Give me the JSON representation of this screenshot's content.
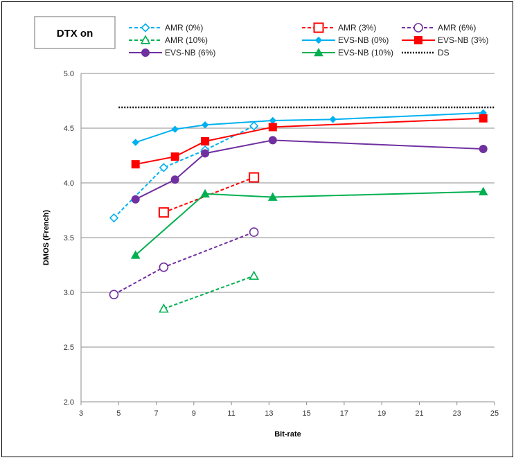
{
  "chart_data": {
    "type": "line",
    "annotation": "DTX on",
    "xlabel": "Bit-rate",
    "ylabel": "DMOS (French)",
    "xlim": [
      3,
      25
    ],
    "ylim": [
      2.0,
      5.0
    ],
    "x_ticks": [
      "3",
      "5",
      "7",
      "9",
      "11",
      "13",
      "15",
      "17",
      "19",
      "21",
      "23",
      "25"
    ],
    "y_ticks": [
      "2.0",
      "2.5",
      "3.0",
      "3.5",
      "4.0",
      "4.5",
      "5.0"
    ],
    "grid": "horizontal",
    "legend_position": "top",
    "series": [
      {
        "name": "AMR (0%)",
        "x": [
          4.75,
          7.4,
          9.6,
          12.2
        ],
        "y": [
          3.68,
          4.14,
          4.3,
          4.52
        ],
        "color": "#00b0f0",
        "dash": "dashed",
        "marker": "diamond-open"
      },
      {
        "name": "AMR (3%)",
        "x": [
          7.4,
          12.2
        ],
        "y": [
          3.73,
          4.05
        ],
        "color": "#ff0000",
        "dash": "dashed",
        "marker": "square-open"
      },
      {
        "name": "AMR (6%)",
        "x": [
          4.75,
          7.4,
          12.2
        ],
        "y": [
          2.98,
          3.23,
          3.55
        ],
        "color": "#7030a0",
        "dash": "dashed",
        "marker": "circle-open"
      },
      {
        "name": "AMR (10%)",
        "x": [
          7.4,
          12.2
        ],
        "y": [
          2.85,
          3.15
        ],
        "color": "#00b050",
        "dash": "dashed",
        "marker": "triangle-open"
      },
      {
        "name": "EVS-NB (0%)",
        "x": [
          5.9,
          8.0,
          9.6,
          13.2,
          16.4,
          24.4
        ],
        "y": [
          4.37,
          4.49,
          4.53,
          4.57,
          4.58,
          4.64
        ],
        "color": "#00b0f0",
        "dash": "solid",
        "marker": "diamond"
      },
      {
        "name": "EVS-NB (3%)",
        "x": [
          5.9,
          8.0,
          9.6,
          13.2,
          24.4
        ],
        "y": [
          4.17,
          4.24,
          4.38,
          4.51,
          4.59
        ],
        "color": "#ff0000",
        "dash": "solid",
        "marker": "square"
      },
      {
        "name": "EVS-NB (6%)",
        "x": [
          5.9,
          8.0,
          9.6,
          13.2,
          24.4
        ],
        "y": [
          3.85,
          4.03,
          4.27,
          4.39,
          4.31
        ],
        "color": "#7030a0",
        "dash": "solid",
        "marker": "circle"
      },
      {
        "name": "EVS-NB (10%)",
        "x": [
          5.9,
          9.6,
          13.2,
          24.4
        ],
        "y": [
          3.34,
          3.9,
          3.87,
          3.92
        ],
        "color": "#00b050",
        "dash": "solid",
        "marker": "triangle"
      },
      {
        "name": "DS",
        "x": [
          5.0,
          25.0
        ],
        "y": [
          4.69,
          4.69
        ],
        "color": "#000000",
        "dash": "dotted",
        "marker": "none"
      }
    ]
  }
}
